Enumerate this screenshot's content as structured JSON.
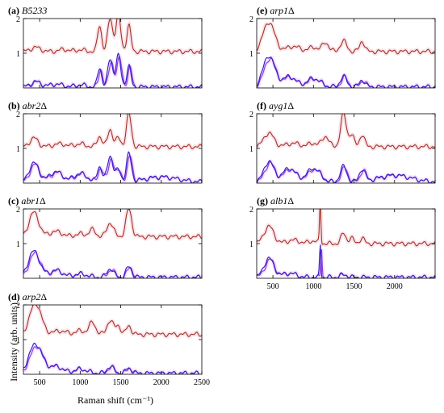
{
  "chart_data": {
    "type": "line",
    "ylabel": "Intensity (arb. units)",
    "xlabel": "Raman shift (cm⁻¹)",
    "xlim": [
      300,
      2500
    ],
    "ylim": [
      0,
      2
    ],
    "xticks": [
      "500",
      "1000",
      "1500",
      "2000",
      "2500"
    ],
    "yticks": [
      "1",
      "2"
    ],
    "series_colors": {
      "upper": "#a4321e",
      "lower_1": "#3a1fc8",
      "lower_2": "#8a3fe0"
    },
    "panels": [
      {
        "letter": "(a)",
        "strain": "B5233",
        "delta": "",
        "upper": {
          "base": 1.05,
          "peaks": [
            [
              450,
              0.12,
              60
            ],
            [
              800,
              0.06,
              60
            ],
            [
              1000,
              0.05,
              50
            ],
            [
              1240,
              0.75,
              25
            ],
            [
              1370,
              0.95,
              30
            ],
            [
              1470,
              1.05,
              30
            ],
            [
              1600,
              0.75,
              25
            ]
          ]
        },
        "lower": {
          "peaks": [
            [
              450,
              0.15,
              60
            ],
            [
              700,
              0.08,
              80
            ],
            [
              1000,
              0.06,
              60
            ],
            [
              1240,
              0.55,
              25
            ],
            [
              1370,
              0.8,
              30
            ],
            [
              1470,
              0.9,
              30
            ],
            [
              1600,
              0.6,
              25
            ]
          ]
        }
      },
      {
        "letter": "(b)",
        "strain": "abr2",
        "delta": "Δ",
        "upper": {
          "base": 1.05,
          "peaks": [
            [
              430,
              0.25,
              50
            ],
            [
              750,
              0.08,
              80
            ],
            [
              1000,
              0.08,
              60
            ],
            [
              1240,
              0.3,
              30
            ],
            [
              1370,
              0.5,
              30
            ],
            [
              1470,
              0.25,
              30
            ],
            [
              1600,
              0.95,
              30
            ]
          ]
        },
        "lower": {
          "peaks": [
            [
              430,
              0.55,
              60
            ],
            [
              700,
              0.3,
              80
            ],
            [
              1000,
              0.25,
              80
            ],
            [
              1240,
              0.45,
              30
            ],
            [
              1370,
              0.75,
              35
            ],
            [
              1470,
              0.35,
              30
            ],
            [
              1600,
              0.8,
              30
            ],
            [
              2000,
              0.15,
              200
            ]
          ]
        }
      },
      {
        "letter": "(c)",
        "strain": "abr1",
        "delta": "Δ",
        "upper": {
          "base": 1.2,
          "peaks": [
            [
              430,
              0.7,
              60
            ],
            [
              700,
              0.15,
              80
            ],
            [
              1000,
              0.08,
              60
            ],
            [
              1150,
              0.2,
              40
            ],
            [
              1370,
              0.4,
              40
            ],
            [
              1600,
              0.8,
              35
            ]
          ]
        },
        "lower": {
          "peaks": [
            [
              430,
              0.75,
              70
            ],
            [
              700,
              0.2,
              80
            ],
            [
              1000,
              0.1,
              80
            ],
            [
              1370,
              0.25,
              40
            ],
            [
              1600,
              0.3,
              35
            ]
          ]
        }
      },
      {
        "letter": "(d)",
        "strain": "arp2",
        "delta": "Δ",
        "upper": {
          "base": 1.15,
          "peaks": [
            [
              450,
              0.9,
              70
            ],
            [
              750,
              0.1,
              80
            ],
            [
              1000,
              0.1,
              60
            ],
            [
              1150,
              0.35,
              40
            ],
            [
              1370,
              0.4,
              40
            ],
            [
              1470,
              0.25,
              30
            ],
            [
              1600,
              0.25,
              30
            ]
          ]
        },
        "lower": {
          "peaks": [
            [
              450,
              0.85,
              80
            ],
            [
              700,
              0.2,
              80
            ],
            [
              1000,
              0.12,
              80
            ],
            [
              1370,
              0.2,
              40
            ],
            [
              1600,
              0.15,
              35
            ]
          ]
        }
      },
      {
        "letter": "(e)",
        "strain": "arp1",
        "delta": "Δ",
        "upper": {
          "base": 1.05,
          "peaks": [
            [
              450,
              0.85,
              70
            ],
            [
              750,
              0.15,
              80
            ],
            [
              1000,
              0.12,
              60
            ],
            [
              1150,
              0.25,
              40
            ],
            [
              1370,
              0.3,
              40
            ],
            [
              1600,
              0.3,
              30
            ]
          ]
        },
        "lower": {
          "peaks": [
            [
              450,
              0.9,
              70
            ],
            [
              700,
              0.3,
              80
            ],
            [
              1000,
              0.25,
              80
            ],
            [
              1370,
              0.3,
              40
            ],
            [
              1600,
              0.2,
              35
            ]
          ]
        }
      },
      {
        "letter": "(f)",
        "strain": "ayg1",
        "delta": "Δ",
        "upper": {
          "base": 1.05,
          "peaks": [
            [
              450,
              0.4,
              60
            ],
            [
              750,
              0.1,
              80
            ],
            [
              1000,
              0.1,
              60
            ],
            [
              1150,
              0.3,
              40
            ],
            [
              1370,
              0.95,
              35
            ],
            [
              1470,
              0.35,
              30
            ],
            [
              1600,
              0.35,
              30
            ]
          ]
        },
        "lower": {
          "peaks": [
            [
              450,
              0.6,
              60
            ],
            [
              700,
              0.4,
              80
            ],
            [
              1000,
              0.4,
              80
            ],
            [
              1370,
              0.45,
              40
            ],
            [
              1600,
              0.35,
              35
            ],
            [
              2000,
              0.2,
              200
            ]
          ]
        }
      },
      {
        "letter": "(g)",
        "strain": "alb1",
        "delta": "Δ",
        "upper": {
          "base": 1.0,
          "peaks": [
            [
              450,
              0.5,
              60
            ],
            [
              750,
              0.1,
              80
            ],
            [
              1000,
              0.08,
              50
            ],
            [
              1083,
              1.2,
              8
            ],
            [
              1370,
              0.3,
              30
            ],
            [
              1470,
              0.15,
              30
            ],
            [
              1600,
              0.15,
              30
            ]
          ]
        },
        "lower": {
          "peaks": [
            [
              450,
              0.55,
              60
            ],
            [
              700,
              0.12,
              80
            ],
            [
              1083,
              0.95,
              8
            ],
            [
              1370,
              0.08,
              40
            ]
          ]
        }
      }
    ]
  }
}
